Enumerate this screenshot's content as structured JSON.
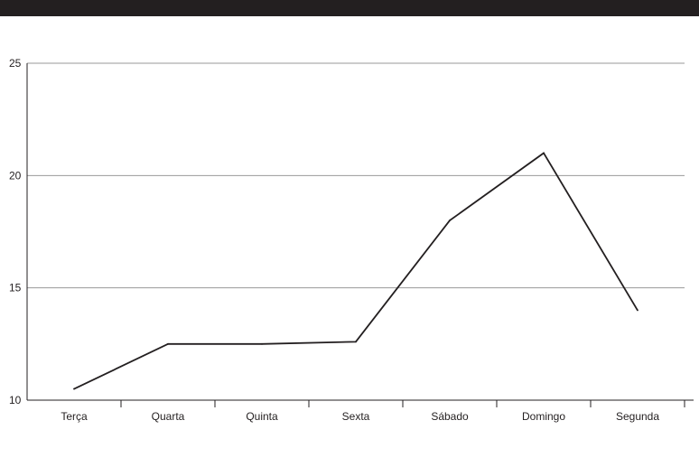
{
  "chart_data": {
    "type": "line",
    "title": "",
    "xlabel": "",
    "ylabel": "",
    "categories": [
      "Terça",
      "Quarta",
      "Quinta",
      "Sexta",
      "Sábado",
      "Domingo",
      "Segunda"
    ],
    "series": [
      {
        "values": [
          10.5,
          12.5,
          12.5,
          12.6,
          18.0,
          21.0,
          14.0
        ]
      }
    ],
    "ylim": [
      10,
      25
    ],
    "yticks": [
      10,
      15,
      20,
      25
    ],
    "grid": true,
    "legend": "none",
    "colors": {
      "line": "#231f20",
      "grid": "#999999",
      "axis": "#231f20",
      "header_bar": "#231f20"
    }
  }
}
